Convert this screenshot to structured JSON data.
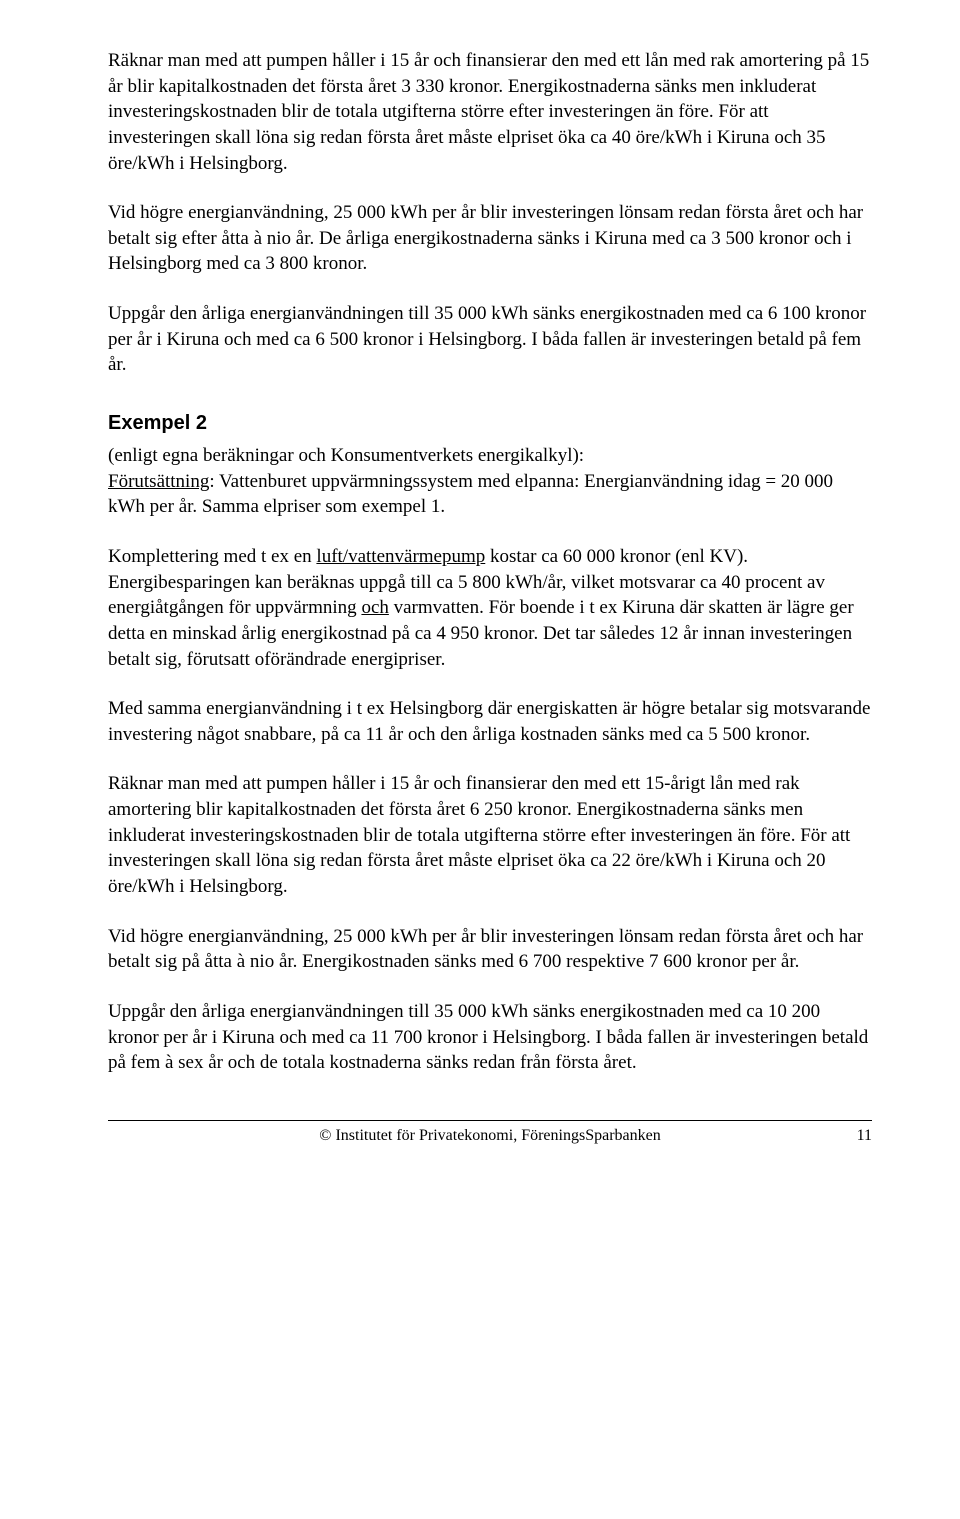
{
  "paragraphs": {
    "p1": "Räknar man med att pumpen håller i 15 år och finansierar den med ett lån med rak amortering på 15 år blir kapitalkostnaden det första året 3 330 kronor. Energikostnaderna sänks men inkluderat investeringskostnaden blir de totala utgifterna större efter investeringen än före. För att investeringen skall löna sig redan första året måste elpriset öka ca 40 öre/kWh i Kiruna och 35 öre/kWh i Helsingborg.",
    "p2": "Vid högre energianvändning, 25 000 kWh per år blir investeringen lönsam redan första året och har betalt sig efter åtta à nio år. De årliga energikostnaderna sänks i Kiruna med ca 3 500 kronor och i Helsingborg med ca 3 800 kronor.",
    "p3": "Uppgår den årliga energianvändningen till 35 000 kWh sänks energikostnaden med ca 6 100 kronor per år i Kiruna och med ca 6 500 kronor i Helsingborg. I båda fallen är investeringen betald på fem år.",
    "h1": "Exempel 2",
    "p4_lead": " (enligt egna beräkningar och Konsumentverkets energikalkyl):",
    "p4_prefix_u": "Förutsättning",
    "p4_rest": ": Vattenburet uppvärmningssystem med elpanna: Energianvändning idag = 20 000 kWh per år. Samma elpriser som exempel 1.",
    "p5_a": "Komplettering med t ex en ",
    "p5_u1": "luft/vattenvärmepump",
    "p5_b": " kostar ca 60 000 kronor (enl KV). Energibesparingen kan beräknas uppgå till ca 5 800 kWh/år, vilket motsvarar ca 40 procent av energiåtgången för uppvärmning ",
    "p5_u2": "och",
    "p5_c": " varmvatten. För boende i t ex Kiruna där skatten är lägre ger detta en minskad årlig energikostnad på ca 4 950 kronor. Det tar således 12 år innan investeringen betalt sig, förutsatt oförändrade energipriser.",
    "p6": "Med samma energianvändning i t ex Helsingborg där energiskatten är högre betalar sig motsvarande investering något snabbare, på ca 11 år och den årliga kostnaden sänks med ca 5 500 kronor.",
    "p7": "Räknar man med att pumpen håller i 15 år och finansierar den med ett 15-årigt lån med rak amortering blir kapitalkostnaden det första året 6 250 kronor. Energikostnaderna sänks men inkluderat investeringskostnaden blir de totala utgifterna större efter investeringen än före. För att investeringen skall löna sig redan första året måste elpriset öka ca 22 öre/kWh i Kiruna och 20 öre/kWh i Helsingborg.",
    "p8": "Vid högre energianvändning, 25 000 kWh per år blir investeringen lönsam redan första året och har betalt sig på åtta à nio år. Energikostnaden sänks med 6 700 respektive 7 600 kronor per år.",
    "p9": "Uppgår den årliga energianvändningen till 35 000 kWh sänks energikostnaden med ca 10 200 kronor per år i Kiruna och med ca 11 700 kronor i Helsingborg. I båda fallen är investeringen betald på fem à sex år och de totala kostnaderna sänks redan från första året."
  },
  "footer": {
    "text": "© Institutet för Privatekonomi, FöreningsSparbanken",
    "page": "11"
  }
}
